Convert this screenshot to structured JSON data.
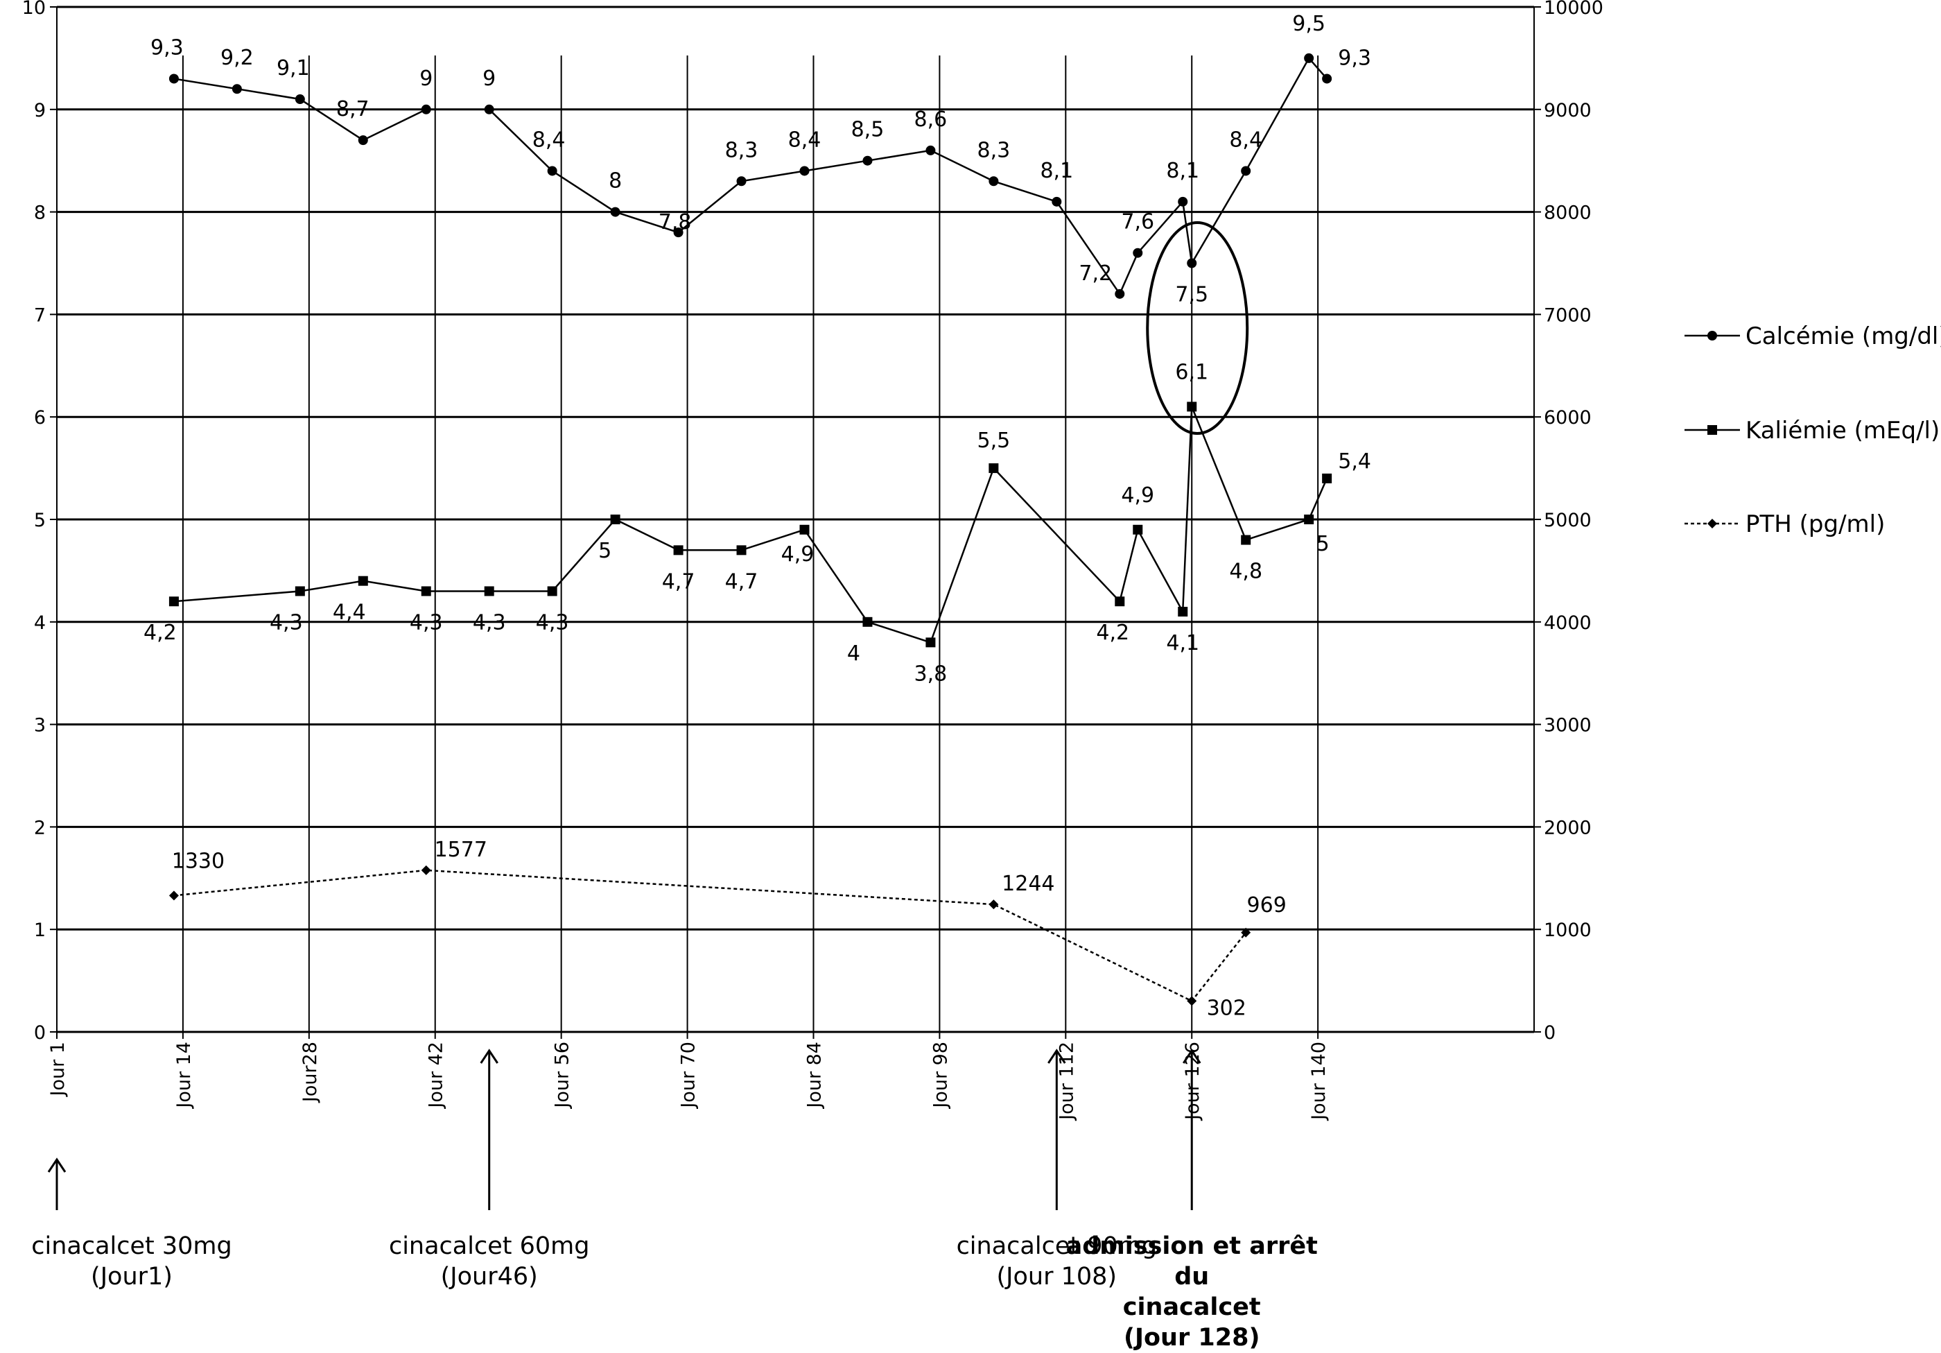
{
  "chart_data": {
    "type": "line",
    "x_categories": [
      "Jour 1",
      "Jour 14",
      "Jour28",
      "Jour 42",
      "Jour 56",
      "Jour 70",
      "Jour 84",
      "Jour 98",
      "Jour 112",
      "Jour 126",
      "Jour 140"
    ],
    "left_axis": {
      "ylim": [
        0,
        10
      ],
      "ticks": [
        "0",
        "1",
        "2",
        "3",
        "4",
        "5",
        "6",
        "7",
        "8",
        "9",
        "10"
      ]
    },
    "right_axis": {
      "ylim": [
        0,
        10000
      ],
      "ticks": [
        "0",
        "1000",
        "2000",
        "3000",
        "4000",
        "5000",
        "6000",
        "7000",
        "8000",
        "9000",
        "10000"
      ]
    },
    "grid": "horizontal",
    "legend_position": "right",
    "series": [
      {
        "name": "Calcémie (mg/dl)",
        "axis": "left",
        "marker": "circle",
        "line": "solid",
        "x": [
          14,
          21,
          28,
          35,
          42,
          49,
          56,
          63,
          70,
          77,
          84,
          91,
          98,
          105,
          112,
          119,
          121,
          126,
          127,
          133,
          140,
          142
        ],
        "y": [
          9.3,
          9.2,
          9.1,
          8.7,
          9,
          9,
          8.4,
          8,
          7.8,
          8.3,
          8.4,
          8.5,
          8.6,
          8.3,
          8.1,
          7.2,
          7.6,
          8.1,
          7.5,
          8.4,
          9.5,
          9.3
        ],
        "labels": [
          "9,3",
          "9,2",
          "9,1",
          "8,7",
          "9",
          "9",
          "8,4",
          "8",
          "7,8",
          "8,3",
          "8,4",
          "8,5",
          "8,6",
          "8,3",
          "8,1",
          "7,2",
          "7,6",
          "8,1",
          "7,5",
          "8,4",
          "9,5",
          "9,3"
        ]
      },
      {
        "name": "Kaliémie (mEq/l)",
        "axis": "left",
        "marker": "square",
        "line": "solid",
        "x": [
          14,
          28,
          35,
          42,
          49,
          56,
          63,
          70,
          77,
          84,
          91,
          98,
          105,
          119,
          121,
          126,
          127,
          133,
          140,
          142
        ],
        "y": [
          4.2,
          4.3,
          4.4,
          4.3,
          4.3,
          4.3,
          5,
          4.7,
          4.7,
          4.9,
          4,
          3.8,
          5.5,
          4.2,
          4.9,
          4.1,
          6.1,
          4.8,
          5,
          5.4
        ],
        "labels": [
          "4,2",
          "4,3",
          "4,4",
          "4,3",
          "4,3",
          "4,3",
          "5",
          "4,7",
          "4,7",
          "4,9",
          "4",
          "3,8",
          "5,5",
          "4,2",
          "4,9",
          "4,1",
          "6,1",
          "4,8",
          "5",
          "5,4"
        ]
      },
      {
        "name": "PTH (pg/ml)",
        "axis": "right",
        "marker": "diamond",
        "line": "dotted",
        "x": [
          14,
          42,
          105,
          127,
          133
        ],
        "y": [
          1330,
          1577,
          1244,
          302,
          969
        ],
        "labels": [
          "1330",
          "1577",
          "1244",
          "302",
          "969"
        ]
      }
    ],
    "annotations": [
      {
        "lines": [
          "cinacalcet 30mg",
          "(Jour1)"
        ],
        "x": 1,
        "bold": false
      },
      {
        "lines": [
          "cinacalcet 60mg",
          "(Jour46)"
        ],
        "x": 49,
        "bold": false
      },
      {
        "lines": [
          "cinacalcet 90mg",
          "(Jour 108)"
        ],
        "x": 112,
        "bold": false
      },
      {
        "lines": [
          "admission et arrêt du",
          "cinacalcet",
          "(Jour 128)"
        ],
        "x": 127,
        "bold": true
      }
    ],
    "highlight": "ellipse around Jour 127 points (Calcémie 7,5 and Kaliémie 6,1)"
  }
}
